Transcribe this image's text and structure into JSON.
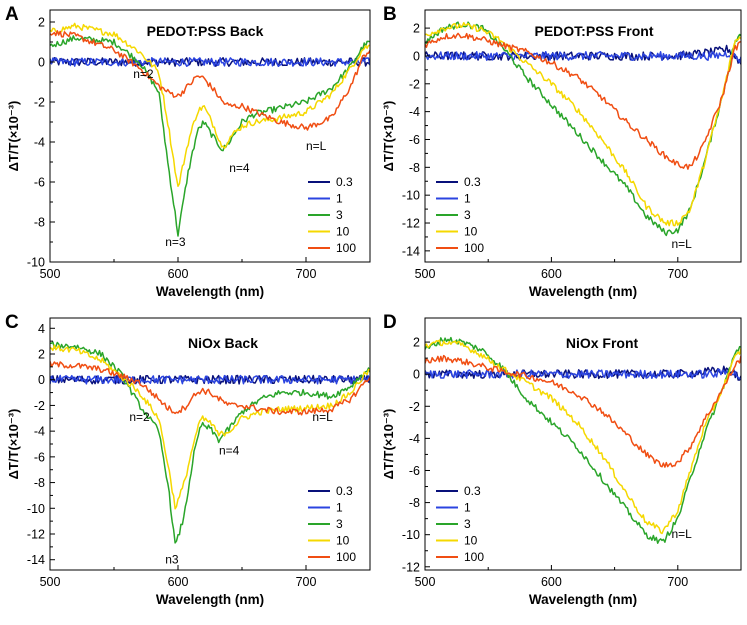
{
  "chart_data": [
    {
      "panel": "A",
      "type": "line",
      "title": "PEDOT:PSS Back",
      "xlabel": "Wavelength (nm)",
      "ylabel": "ΔT/T(×10⁻³)",
      "xlim": [
        500,
        750
      ],
      "ylim": [
        -10,
        2.6
      ],
      "xticks": [
        500,
        600,
        700
      ],
      "yticks": [
        2,
        0,
        -2,
        -4,
        -6,
        -8,
        -10
      ],
      "legend_position": "bottom-right",
      "annotations": [
        {
          "text": "n=2",
          "x": 565,
          "y": -0.8
        },
        {
          "text": "n=4",
          "x": 640,
          "y": -5.5
        },
        {
          "text": "n=L",
          "x": 700,
          "y": -4.4
        },
        {
          "text": "n=3",
          "x": 590,
          "y": -9.2
        }
      ],
      "series": [
        {
          "name": "0.3",
          "color": "#08107a",
          "x": [
            500,
            550,
            600,
            650,
            700,
            740,
            750
          ],
          "y": [
            0,
            0,
            0,
            0,
            0,
            0,
            0
          ]
        },
        {
          "name": "1",
          "color": "#2b44e0",
          "x": [
            500,
            550,
            600,
            650,
            700,
            740,
            750
          ],
          "y": [
            0,
            0,
            0,
            0,
            0,
            0,
            0
          ]
        },
        {
          "name": "3",
          "color": "#2aa52a",
          "x": [
            500,
            520,
            550,
            570,
            585,
            592,
            600,
            608,
            615,
            620,
            628,
            635,
            640,
            650,
            660,
            680,
            700,
            720,
            735,
            745,
            750
          ],
          "y": [
            0.8,
            1.2,
            1.0,
            0.0,
            -1.5,
            -5.0,
            -8.6,
            -5.5,
            -3.5,
            -3.0,
            -3.8,
            -4.4,
            -4.0,
            -3.0,
            -2.6,
            -2.3,
            -2.0,
            -1.3,
            -0.2,
            0.8,
            1.0
          ]
        },
        {
          "name": "10",
          "color": "#f5d800",
          "x": [
            500,
            520,
            550,
            570,
            585,
            592,
            600,
            608,
            615,
            620,
            628,
            635,
            640,
            650,
            660,
            680,
            700,
            720,
            735,
            745,
            750
          ],
          "y": [
            1.5,
            1.8,
            1.4,
            0.5,
            -0.5,
            -3.0,
            -6.3,
            -4.0,
            -2.5,
            -2.2,
            -3.2,
            -4.3,
            -3.8,
            -3.2,
            -3.0,
            -2.8,
            -2.5,
            -1.6,
            -0.3,
            0.7,
            0.8
          ]
        },
        {
          "name": "100",
          "color": "#f04e13",
          "x": [
            500,
            520,
            550,
            570,
            585,
            592,
            600,
            608,
            615,
            620,
            628,
            635,
            640,
            650,
            660,
            680,
            700,
            720,
            735,
            745,
            750
          ],
          "y": [
            1.5,
            1.3,
            0.6,
            -0.3,
            -1.2,
            -1.5,
            -1.7,
            -1.2,
            -0.7,
            -0.8,
            -1.4,
            -2.0,
            -2.2,
            -2.2,
            -2.5,
            -3.0,
            -3.3,
            -2.8,
            -1.2,
            0.3,
            0.6
          ]
        }
      ]
    },
    {
      "panel": "B",
      "type": "line",
      "title": "PEDOT:PSS Front",
      "xlabel": "Wavelength (nm)",
      "ylabel": "ΔT/T(×10⁻³)",
      "xlim": [
        500,
        750
      ],
      "ylim": [
        -14.8,
        3.3
      ],
      "xticks": [
        500,
        600,
        700
      ],
      "yticks": [
        2,
        0,
        -2,
        -4,
        -6,
        -8,
        -10,
        -12,
        -14
      ],
      "legend_position": "bottom-left",
      "annotations": [
        {
          "text": "n=L",
          "x": 695,
          "y": -13.8
        }
      ],
      "series": [
        {
          "name": "0.3",
          "color": "#08107a",
          "x": [
            500,
            550,
            600,
            650,
            700,
            730,
            740,
            750
          ],
          "y": [
            0,
            0,
            0,
            0,
            0,
            0.3,
            0.5,
            -0.5
          ]
        },
        {
          "name": "1",
          "color": "#2b44e0",
          "x": [
            500,
            550,
            600,
            650,
            700,
            730,
            740,
            750
          ],
          "y": [
            0,
            0,
            0,
            0,
            0,
            0,
            0.2,
            -0.3
          ]
        },
        {
          "name": "3",
          "color": "#2aa52a",
          "x": [
            500,
            515,
            530,
            545,
            560,
            580,
            600,
            620,
            640,
            660,
            675,
            690,
            700,
            710,
            720,
            735,
            745,
            750
          ],
          "y": [
            1.0,
            2.0,
            2.3,
            2.0,
            0.8,
            -1.5,
            -3.5,
            -5.5,
            -7.5,
            -9.5,
            -11.5,
            -12.7,
            -12.5,
            -11.0,
            -8.0,
            -3.0,
            1.0,
            1.5
          ]
        },
        {
          "name": "10",
          "color": "#f5d800",
          "x": [
            500,
            515,
            530,
            545,
            560,
            580,
            600,
            620,
            640,
            660,
            675,
            690,
            700,
            710,
            720,
            735,
            745,
            750
          ],
          "y": [
            1.5,
            2.0,
            2.2,
            1.9,
            1.1,
            -0.5,
            -2.0,
            -3.8,
            -6.0,
            -8.5,
            -10.8,
            -12.0,
            -12.0,
            -11.0,
            -8.0,
            -3.0,
            1.0,
            1.4
          ]
        },
        {
          "name": "100",
          "color": "#f04e13",
          "x": [
            500,
            515,
            530,
            545,
            560,
            580,
            600,
            620,
            640,
            660,
            675,
            690,
            700,
            710,
            720,
            735,
            745,
            750
          ],
          "y": [
            0.8,
            1.4,
            1.5,
            1.2,
            0.8,
            0.3,
            -0.5,
            -1.5,
            -3.0,
            -4.8,
            -6.0,
            -7.2,
            -7.8,
            -8.0,
            -6.5,
            -3.0,
            0.5,
            1.0
          ]
        }
      ]
    },
    {
      "panel": "C",
      "type": "line",
      "title": "NiOx Back",
      "xlabel": "Wavelength (nm)",
      "ylabel": "ΔT/T(×10⁻³)",
      "xlim": [
        500,
        750
      ],
      "ylim": [
        -14.8,
        4.8
      ],
      "xticks": [
        500,
        600,
        700
      ],
      "yticks": [
        4,
        2,
        0,
        -2,
        -4,
        -6,
        -8,
        -10,
        -12,
        -14
      ],
      "legend_position": "bottom-right",
      "annotations": [
        {
          "text": "n=2",
          "x": 562,
          "y": -3.2
        },
        {
          "text": "n=4",
          "x": 632,
          "y": -5.8
        },
        {
          "text": "n=L",
          "x": 705,
          "y": -3.2
        },
        {
          "text": "n3",
          "x": 590,
          "y": -14.3
        }
      ],
      "series": [
        {
          "name": "0.3",
          "color": "#08107a",
          "x": [
            500,
            550,
            600,
            650,
            700,
            740,
            750
          ],
          "y": [
            0,
            0,
            0,
            0,
            0,
            0,
            0
          ]
        },
        {
          "name": "1",
          "color": "#2b44e0",
          "x": [
            500,
            550,
            600,
            650,
            700,
            740,
            750
          ],
          "y": [
            0,
            0,
            0,
            0,
            0,
            0,
            0
          ]
        },
        {
          "name": "3",
          "color": "#2aa52a",
          "x": [
            500,
            520,
            540,
            555,
            570,
            585,
            592,
            598,
            605,
            612,
            618,
            625,
            632,
            640,
            650,
            665,
            680,
            700,
            720,
            735,
            745,
            750
          ],
          "y": [
            2.7,
            2.6,
            2.0,
            0.5,
            -2.0,
            -4.0,
            -8.0,
            -13.0,
            -10.5,
            -6.0,
            -3.5,
            -3.8,
            -4.7,
            -3.8,
            -2.5,
            -1.5,
            -1.0,
            -1.0,
            -1.3,
            -0.5,
            0.5,
            0.8
          ]
        },
        {
          "name": "10",
          "color": "#f5d800",
          "x": [
            500,
            520,
            540,
            555,
            570,
            585,
            592,
            598,
            605,
            612,
            618,
            625,
            632,
            640,
            650,
            665,
            680,
            700,
            720,
            735,
            745,
            750
          ],
          "y": [
            2.5,
            2.3,
            1.5,
            0.3,
            -1.0,
            -3.0,
            -6.5,
            -10.0,
            -8.0,
            -5.0,
            -3.0,
            -3.3,
            -4.3,
            -4.0,
            -3.0,
            -2.5,
            -2.3,
            -2.2,
            -2.0,
            -1.0,
            0.3,
            0.8
          ]
        },
        {
          "name": "100",
          "color": "#f04e13",
          "x": [
            500,
            520,
            540,
            555,
            570,
            585,
            592,
            598,
            605,
            612,
            618,
            625,
            632,
            640,
            650,
            665,
            680,
            700,
            720,
            735,
            745,
            750
          ],
          "y": [
            1.2,
            1.1,
            0.8,
            0.3,
            -0.2,
            -1.5,
            -2.2,
            -2.5,
            -2.2,
            -1.3,
            -0.8,
            -1.0,
            -1.5,
            -2.0,
            -2.0,
            -2.3,
            -2.5,
            -2.5,
            -2.3,
            -1.5,
            -0.3,
            0.3
          ]
        }
      ]
    },
    {
      "panel": "D",
      "type": "line",
      "title": "NiOx Front",
      "xlabel": "Wavelength (nm)",
      "ylabel": "ΔT/T(×10⁻³)",
      "xlim": [
        500,
        750
      ],
      "ylim": [
        -12.2,
        3.5
      ],
      "xticks": [
        500,
        600,
        700
      ],
      "yticks": [
        2,
        0,
        -2,
        -4,
        -6,
        -8,
        -10,
        -12
      ],
      "legend_position": "bottom-left",
      "annotations": [
        {
          "text": "n=L",
          "x": 695,
          "y": -10.2
        }
      ],
      "series": [
        {
          "name": "0.3",
          "color": "#08107a",
          "x": [
            500,
            550,
            600,
            650,
            700,
            730,
            740,
            750
          ],
          "y": [
            0,
            0,
            0,
            0,
            0,
            0.2,
            0.3,
            -0.3
          ]
        },
        {
          "name": "1",
          "color": "#2b44e0",
          "x": [
            500,
            550,
            600,
            650,
            700,
            730,
            740,
            750
          ],
          "y": [
            0,
            0,
            0,
            0,
            0,
            0,
            0.2,
            -0.2
          ]
        },
        {
          "name": "3",
          "color": "#2aa52a",
          "x": [
            500,
            515,
            530,
            545,
            560,
            580,
            600,
            620,
            640,
            660,
            675,
            688,
            700,
            710,
            720,
            735,
            745,
            750
          ],
          "y": [
            1.5,
            2.2,
            2.0,
            1.5,
            0.5,
            -1.5,
            -3.0,
            -4.5,
            -6.5,
            -8.5,
            -10.0,
            -10.5,
            -9.0,
            -6.5,
            -4.0,
            -1.0,
            1.2,
            1.8
          ]
        },
        {
          "name": "10",
          "color": "#f5d800",
          "x": [
            500,
            515,
            530,
            545,
            560,
            580,
            600,
            620,
            640,
            660,
            675,
            688,
            700,
            710,
            720,
            735,
            745,
            750
          ],
          "y": [
            1.8,
            2.0,
            1.8,
            1.2,
            0.4,
            -0.5,
            -1.5,
            -3.0,
            -5.0,
            -7.5,
            -9.2,
            -9.8,
            -8.5,
            -6.0,
            -3.5,
            -1.0,
            1.0,
            1.5
          ]
        },
        {
          "name": "100",
          "color": "#f04e13",
          "x": [
            500,
            515,
            530,
            545,
            560,
            580,
            600,
            620,
            640,
            660,
            675,
            688,
            700,
            710,
            720,
            735,
            745,
            750
          ],
          "y": [
            0.8,
            1.0,
            0.8,
            0.5,
            0.2,
            -0.1,
            -0.5,
            -1.2,
            -2.3,
            -3.8,
            -5.0,
            -5.7,
            -5.5,
            -4.5,
            -3.0,
            -1.0,
            0.5,
            1.0
          ]
        }
      ]
    }
  ]
}
